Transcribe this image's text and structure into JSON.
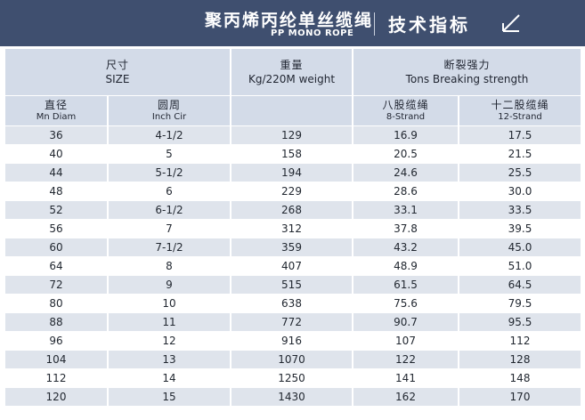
{
  "title": {
    "chinese": "聚丙烯丙纶单丝缆绳",
    "english": "PP MONO ROPE",
    "spec_label": "技术指标",
    "icon": "diagonal-arrow-icon"
  },
  "headers": {
    "size": {
      "cn": "尺寸",
      "en": "SIZE"
    },
    "weight": {
      "cn": "重量",
      "en": "Kg/220M weight"
    },
    "strength": {
      "cn": "断裂强力",
      "en": "Tons Breaking strength"
    },
    "diameter": {
      "cn": "直径",
      "en": "Mn Diam"
    },
    "circumference": {
      "cn": "圆周",
      "en": "Inch Cir"
    },
    "strand8": {
      "cn": "八股缆绳",
      "en": "8-Strand"
    },
    "strand12": {
      "cn": "十二股缆绳",
      "en": "12-Strand"
    }
  },
  "rows": [
    {
      "diam": "36",
      "cir": "4-1/2",
      "weight": "129",
      "s8": "16.9",
      "s12": "17.5"
    },
    {
      "diam": "40",
      "cir": "5",
      "weight": "158",
      "s8": "20.5",
      "s12": "21.5"
    },
    {
      "diam": "44",
      "cir": "5-1/2",
      "weight": "194",
      "s8": "24.6",
      "s12": "25.5"
    },
    {
      "diam": "48",
      "cir": "6",
      "weight": "229",
      "s8": "28.6",
      "s12": "30.0"
    },
    {
      "diam": "52",
      "cir": "6-1/2",
      "weight": "268",
      "s8": "33.1",
      "s12": "33.5"
    },
    {
      "diam": "56",
      "cir": "7",
      "weight": "312",
      "s8": "37.8",
      "s12": "39.5"
    },
    {
      "diam": "60",
      "cir": "7-1/2",
      "weight": "359",
      "s8": "43.2",
      "s12": "45.0"
    },
    {
      "diam": "64",
      "cir": "8",
      "weight": "407",
      "s8": "48.9",
      "s12": "51.0"
    },
    {
      "diam": "72",
      "cir": "9",
      "weight": "515",
      "s8": "61.5",
      "s12": "64.5"
    },
    {
      "diam": "80",
      "cir": "10",
      "weight": "638",
      "s8": "75.6",
      "s12": "79.5"
    },
    {
      "diam": "88",
      "cir": "11",
      "weight": "772",
      "s8": "90.7",
      "s12": "95.5"
    },
    {
      "diam": "96",
      "cir": "12",
      "weight": "916",
      "s8": "107",
      "s12": "112"
    },
    {
      "diam": "104",
      "cir": "13",
      "weight": "1070",
      "s8": "122",
      "s12": "128"
    },
    {
      "diam": "112",
      "cir": "14",
      "weight": "1250",
      "s8": "141",
      "s12": "148"
    },
    {
      "diam": "120",
      "cir": "15",
      "weight": "1430",
      "s8": "162",
      "s12": "170"
    }
  ],
  "colors": {
    "title_bar": "#3f4f6f",
    "header_bg": "#d3dbe8",
    "row_alt_bg": "#dfe4ec",
    "row_bg": "#ffffff"
  }
}
